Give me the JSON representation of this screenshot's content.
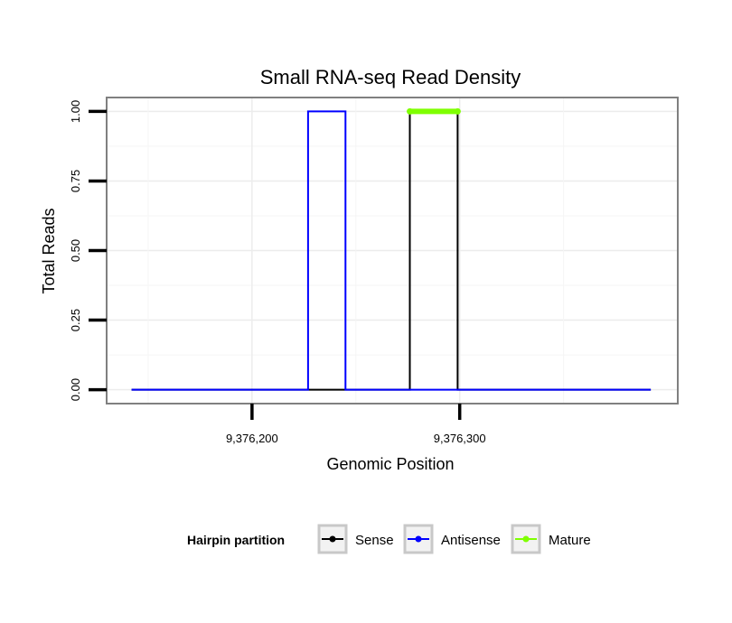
{
  "chart_data": {
    "type": "line",
    "title": "Small RNA-seq Read Density",
    "xlabel": "Genomic Position",
    "ylabel": "Total Reads",
    "xlim": [
      9376130,
      9376405
    ],
    "ylim": [
      -0.05,
      1.05
    ],
    "x_ticks": [
      9376200,
      9376300
    ],
    "x_tick_labels": [
      "9,376,200",
      "9,376,300"
    ],
    "y_ticks": [
      0,
      0.25,
      0.5,
      0.75,
      1.0
    ],
    "y_tick_labels": [
      "0.00",
      "0.25",
      "0.50",
      "0.75",
      "1.00"
    ],
    "grid": true,
    "legend": {
      "title": "Hairpin partition",
      "position": "bottom",
      "entries": [
        "Sense",
        "Antisense",
        "Mature"
      ]
    },
    "series": [
      {
        "name": "Sense",
        "color": "#000000",
        "x": [
          9376142,
          9376276,
          9376276,
          9376299,
          9376299,
          9376392
        ],
        "y": [
          0,
          0,
          1,
          1,
          0,
          0
        ]
      },
      {
        "name": "Antisense",
        "color": "#0000ff",
        "x": [
          9376142,
          9376227,
          9376227,
          9376245,
          9376245,
          9376276,
          9376299,
          9376392
        ],
        "y": [
          0,
          0,
          1,
          1,
          0,
          0,
          0,
          0
        ]
      },
      {
        "name": "Mature",
        "color": "#7fff00",
        "x": [
          9376276,
          9376299
        ],
        "y": [
          1,
          1
        ]
      }
    ]
  }
}
